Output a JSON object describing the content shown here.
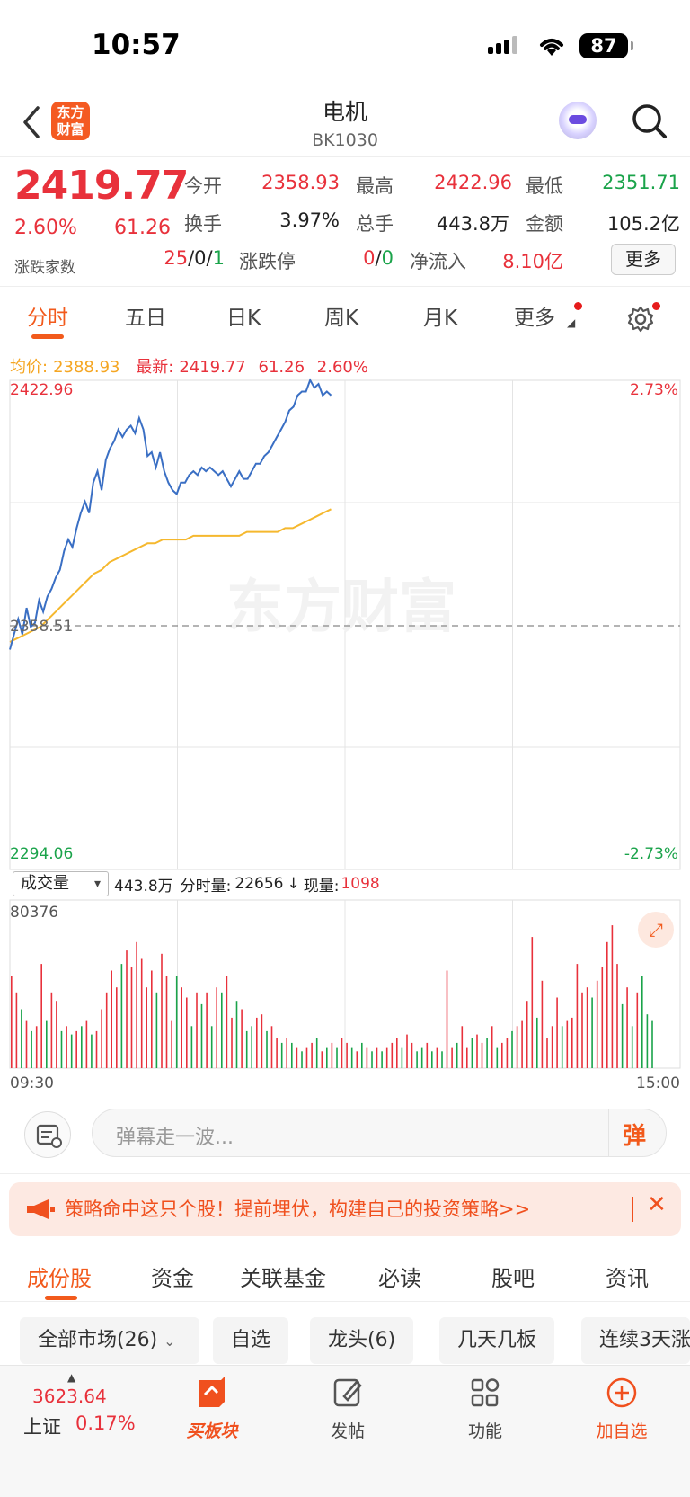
{
  "status": {
    "time": "10:57",
    "battery": "87"
  },
  "nav": {
    "back_icon": "chevron-left-icon",
    "logo_text_1": "东方",
    "logo_text_2": "财富",
    "title": "电机",
    "code": "BK1030",
    "robot_icon": "assistant-robot-icon",
    "search_icon": "search-icon"
  },
  "quote": {
    "price": "2419.77",
    "pct": "2.60%",
    "change": "61.26",
    "open_label": "今开",
    "open": "2358.93",
    "high_label": "最高",
    "high": "2422.96",
    "low_label": "最低",
    "low": "2351.71",
    "turnover_label": "换手",
    "turnover": "3.97%",
    "volume_label": "总手",
    "volume": "443.8万",
    "amount_label": "金额",
    "amount": "105.2亿",
    "advdec_label": "涨跌家数",
    "adv_up": "25",
    "adv_flat": "0",
    "adv_down": "1",
    "limit_label": "涨跌停",
    "limit_up": "0",
    "limit_down": "0",
    "netflow_label": "净流入",
    "netflow": "8.10亿",
    "more_button": "更多"
  },
  "tabs": [
    "分时",
    "五日",
    "日K",
    "周K",
    "月K",
    "更多"
  ],
  "chart_info": {
    "avg_label": "均价:",
    "avg": "2388.93",
    "latest_label": "最新:",
    "latest": "2419.77",
    "change": "61.26",
    "pct": "2.60%"
  },
  "chart_data": {
    "type": "line",
    "title": "",
    "xlim": [
      "09:30",
      "15:00"
    ],
    "ylim": [
      2294.06,
      2422.96
    ],
    "y_top_label": "2422.96",
    "y_bottom_label": "2294.06",
    "pct_top_label": "2.73%",
    "pct_bottom_label": "-2.73%",
    "prev_close_label": "2358.51",
    "watermark": "东方财富",
    "series": [
      {
        "color": "#3a6fc4",
        "values": [
          2352,
          2356,
          2360,
          2356,
          2363,
          2358,
          2359,
          2365,
          2362,
          2366,
          2368,
          2371,
          2373,
          2378,
          2381,
          2379,
          2384,
          2388,
          2391,
          2388,
          2396,
          2399,
          2394,
          2402,
          2405,
          2407,
          2410,
          2408,
          2410,
          2411,
          2409,
          2413,
          2410,
          2403,
          2404,
          2400,
          2404,
          2399,
          2396,
          2394,
          2393,
          2396,
          2396,
          2398,
          2399,
          2398,
          2400,
          2399,
          2400,
          2399,
          2398,
          2399,
          2397,
          2395,
          2397,
          2399,
          2397,
          2397,
          2399,
          2401,
          2401,
          2403,
          2404,
          2406,
          2408,
          2410,
          2412,
          2415,
          2416,
          2419,
          2420,
          2420,
          2423,
          2421,
          2422,
          2419,
          2420,
          2419
        ]
      },
      {
        "color": "#f5b82e",
        "values": [
          2354,
          2355,
          2356,
          2357,
          2358,
          2360,
          2362,
          2364,
          2366,
          2368,
          2370,
          2372,
          2373,
          2375,
          2376,
          2377,
          2378,
          2379,
          2380,
          2380,
          2381,
          2381,
          2381,
          2381,
          2382,
          2382,
          2382,
          2382,
          2382,
          2382,
          2382,
          2383,
          2383,
          2383,
          2383,
          2383,
          2384,
          2384,
          2385,
          2386,
          2387,
          2388,
          2389
        ]
      }
    ]
  },
  "vol": {
    "selector": "成交量",
    "total": "443.8万",
    "minute_label": "分时量:",
    "minute": "22656",
    "arrow": "↓",
    "cur_label": "现量:",
    "cur": "1098",
    "ymax": "80376",
    "x_start": "09:30",
    "x_end": "15:00"
  },
  "vol_data": {
    "values": [
      55,
      45,
      35,
      28,
      22,
      25,
      62,
      28,
      45,
      40,
      22,
      25,
      20,
      22,
      25,
      28,
      20,
      22,
      35,
      45,
      58,
      48,
      62,
      70,
      60,
      75,
      65,
      48,
      58,
      45,
      68,
      55,
      28,
      55,
      48,
      42,
      25,
      45,
      38,
      45,
      25,
      48,
      45,
      55,
      30,
      40,
      35,
      22,
      25,
      30,
      32,
      22,
      25,
      18,
      15,
      18,
      15,
      12,
      10,
      12,
      15,
      18,
      10,
      12,
      15,
      12,
      18,
      15,
      12,
      10,
      15,
      12,
      10,
      12,
      10,
      12,
      15,
      18,
      12,
      20,
      15,
      10,
      12,
      15,
      10,
      12,
      10,
      58,
      12,
      15,
      25,
      12,
      18,
      20,
      15,
      18,
      25,
      12,
      15,
      18,
      22,
      25,
      28,
      40,
      78,
      30,
      52,
      18,
      25,
      42,
      25,
      28,
      30,
      62,
      45,
      48,
      42,
      52,
      60,
      75,
      85,
      62,
      38,
      48,
      25,
      45,
      55,
      32,
      28
    ],
    "ups": [
      1,
      1,
      0,
      1,
      0,
      1,
      1,
      0,
      1,
      1,
      0,
      1,
      0,
      1,
      0,
      1,
      0,
      1,
      1,
      1,
      1,
      1,
      0,
      1,
      1,
      1,
      1,
      1,
      1,
      0,
      1,
      1,
      1,
      0,
      1,
      1,
      0,
      1,
      0,
      1,
      0,
      1,
      0,
      1,
      1,
      0,
      1,
      0,
      0,
      1,
      1,
      0,
      1,
      1,
      0,
      1,
      0,
      1,
      0,
      1,
      1,
      0,
      1,
      0,
      1,
      0,
      1,
      1,
      0,
      1,
      0,
      1,
      0,
      1,
      0,
      1,
      1,
      1,
      0,
      1,
      1,
      0,
      0,
      1,
      0,
      1,
      0,
      1,
      1,
      0,
      1,
      1,
      0,
      1,
      1,
      0,
      1,
      0,
      1,
      1,
      0,
      1,
      1,
      1,
      1,
      0,
      1,
      1,
      1,
      1,
      0,
      1,
      1,
      1,
      1,
      1,
      0,
      1,
      1,
      1,
      1,
      1,
      0,
      1,
      0,
      1,
      0,
      0,
      0
    ]
  },
  "danmu": {
    "placeholder": "弹幕走一波...",
    "dan": "弹"
  },
  "banner": {
    "text": "策略命中这只个股！提前埋伏，构建自己的投资策略>>",
    "close": "✕"
  },
  "subtabs": [
    "成份股",
    "资金",
    "关联基金",
    "必读",
    "股吧",
    "资讯"
  ],
  "chips": [
    "全部市场(26)",
    "自选",
    "龙头(6)",
    "几天几板",
    "连续3天涨"
  ],
  "bottom": {
    "index_value": "3623.64",
    "index_name": "上证",
    "index_pct": "0.17%",
    "buy_label": "买板块",
    "post_label": "发帖",
    "func_label": "功能",
    "add_label": "加自选"
  }
}
